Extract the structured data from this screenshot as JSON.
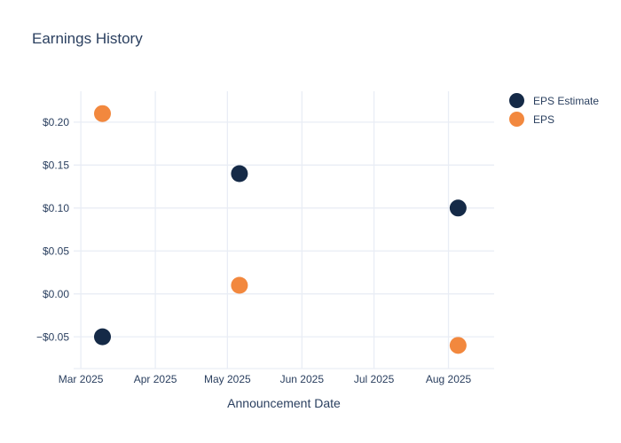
{
  "chart_data": {
    "type": "scatter",
    "title": "Earnings History",
    "xlabel": "Announcement Date",
    "ylabel": "",
    "grid": true,
    "legend_position": "top-right",
    "xlim": [
      "2025-02-26",
      "2025-08-20"
    ],
    "ylim": [
      -0.087,
      0.236
    ],
    "x_ticks": [
      {
        "date": "2025-03-01",
        "label": "Mar 2025"
      },
      {
        "date": "2025-04-01",
        "label": "Apr 2025"
      },
      {
        "date": "2025-05-01",
        "label": "May 2025"
      },
      {
        "date": "2025-06-01",
        "label": "Jun 2025"
      },
      {
        "date": "2025-07-01",
        "label": "Jul 2025"
      },
      {
        "date": "2025-08-01",
        "label": "Aug 2025"
      }
    ],
    "y_ticks": [
      {
        "value": 0.2,
        "label": "$0.20"
      },
      {
        "value": 0.15,
        "label": "$0.15"
      },
      {
        "value": 0.1,
        "label": "$0.10"
      },
      {
        "value": 0.05,
        "label": "$0.05"
      },
      {
        "value": 0.0,
        "label": "$0.00"
      },
      {
        "value": -0.05,
        "label": "−$0.05"
      }
    ],
    "series": [
      {
        "name": "EPS Estimate",
        "color": "#152a47",
        "points": [
          {
            "date": "2025-03-10",
            "value": -0.05
          },
          {
            "date": "2025-05-06",
            "value": 0.14
          },
          {
            "date": "2025-08-05",
            "value": 0.1
          }
        ]
      },
      {
        "name": "EPS",
        "color": "#f2883e",
        "points": [
          {
            "date": "2025-03-10",
            "value": 0.21
          },
          {
            "date": "2025-05-06",
            "value": 0.01
          },
          {
            "date": "2025-08-05",
            "value": -0.06
          }
        ]
      }
    ]
  },
  "colors": {
    "title_text": "#2a3f5f",
    "tick_text": "#2a3f5f",
    "grid_line": "#e9edf5",
    "background": "#ffffff"
  }
}
